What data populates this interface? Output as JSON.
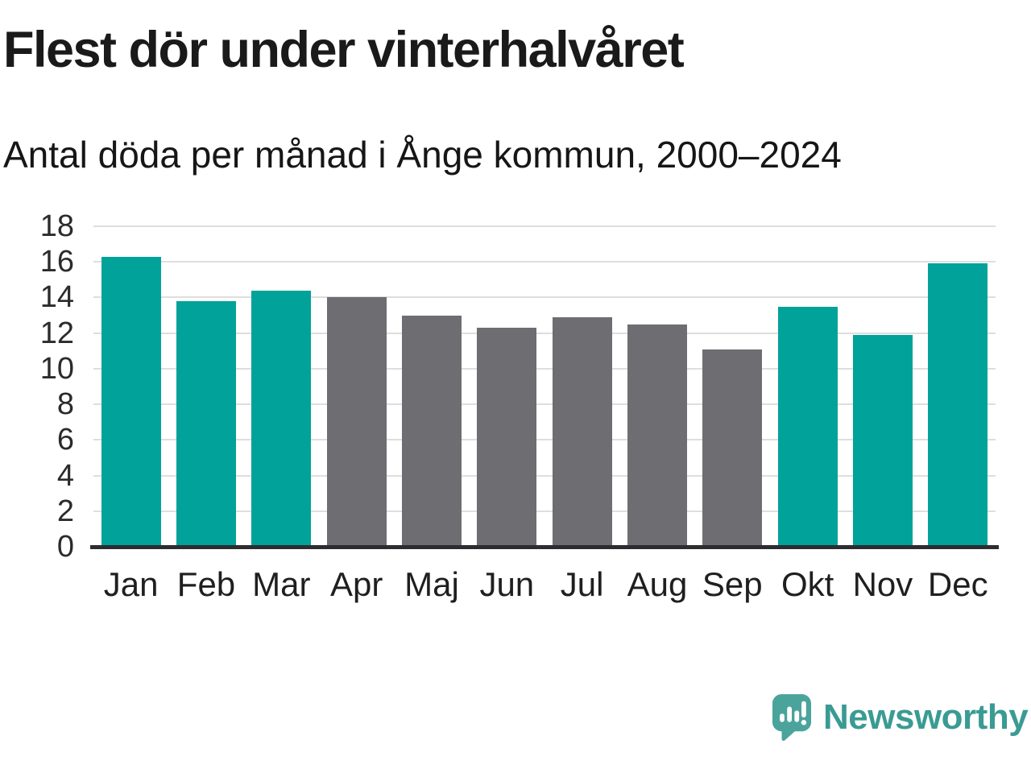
{
  "header": {
    "title": "Flest dör under vinterhalvåret",
    "subtitle": "Antal döda per månad i Ånge kommun, 2000–2024"
  },
  "chart_data": {
    "type": "bar",
    "title": "Flest dör under vinterhalvåret",
    "subtitle": "Antal döda per månad i Ånge kommun, 2000–2024",
    "categories": [
      "Jan",
      "Feb",
      "Mar",
      "Apr",
      "Maj",
      "Jun",
      "Jul",
      "Aug",
      "Sep",
      "Okt",
      "Nov",
      "Dec"
    ],
    "values": [
      16.3,
      13.8,
      14.4,
      14.0,
      13.0,
      12.3,
      12.9,
      12.5,
      11.1,
      13.5,
      11.9,
      15.9
    ],
    "highlighted": [
      true,
      true,
      true,
      false,
      false,
      false,
      false,
      false,
      false,
      true,
      true,
      true
    ],
    "colors": {
      "winter_months": "#00a29a",
      "summer_months": "#6e6d72"
    },
    "xlabel": "",
    "ylabel": "",
    "ylim": [
      0,
      18
    ],
    "ytick_step": 2,
    "grid": "horizontal-light",
    "legend": "none"
  },
  "footer": {
    "brand": "Newsworthy"
  },
  "colors": {
    "background": "#ffffff",
    "grid": "#dedede",
    "axis_line": "#2d2d30",
    "title_text": "#1a1a1a",
    "tick_text": "#2b2b2b",
    "logo_teal": "#3a9b93",
    "logo_icon_teal": "#4aa49c"
  },
  "icons": {
    "logo_icon": "newsworthy-speech-bubble-bar-chart-icon"
  }
}
